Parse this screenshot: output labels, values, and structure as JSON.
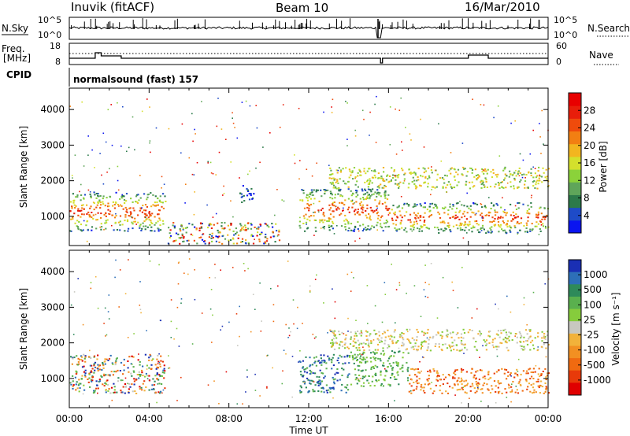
{
  "header": {
    "station": "Inuvik (fitACF)",
    "beam": "Beam 10",
    "date": "16/Mar/2010"
  },
  "noise_panel": {
    "left_label": "N.Sky",
    "right_label": "N.Search",
    "ticks_left": [
      "10^5",
      "10^0"
    ],
    "ticks_right": [
      "10^5",
      "10^0"
    ]
  },
  "freq_panel": {
    "left_label_1": "Freq.",
    "left_label_2": "[MHz]",
    "right_label": "Nave",
    "ticks_left": [
      "18",
      "8"
    ],
    "ticks_right": [
      "60",
      "0"
    ]
  },
  "cpid": {
    "label": "CPID",
    "program": "normalsound (fast) 157"
  },
  "chart_data": [
    {
      "type": "heatmap",
      "name": "power",
      "ylabel": "Slant Range [km]",
      "xlabel": "",
      "ylim": [
        180,
        4600
      ],
      "yticks": [
        "1000",
        "2000",
        "3000",
        "4000"
      ],
      "colorbar": {
        "label": "Power [dB]",
        "ticks": [
          "4",
          "8",
          "12",
          "16",
          "20",
          "24",
          "28"
        ],
        "colors": [
          "#0a14f0",
          "#1e4bc8",
          "#2c7a4a",
          "#5fa55a",
          "#8bd23a",
          "#d4e02c",
          "#f2b51f",
          "#f27f12",
          "#ef4b0c",
          "#e81e0a",
          "#e80000"
        ]
      },
      "regions": [
        {
          "t": [
            0.0,
            4.8
          ],
          "r": [
            600,
            1700
          ],
          "level": "high"
        },
        {
          "t": [
            4.9,
            10.5
          ],
          "r": [
            250,
            850
          ],
          "level": "mixed"
        },
        {
          "t": [
            11.5,
            16.0
          ],
          "r": [
            600,
            1800
          ],
          "level": "high"
        },
        {
          "t": [
            16.0,
            24.0
          ],
          "r": [
            550,
            1400
          ],
          "level": "high"
        },
        {
          "t": [
            13.0,
            24.0
          ],
          "r": [
            1800,
            2400
          ],
          "level": "mid"
        },
        {
          "t": [
            8.5,
            9.3
          ],
          "r": [
            1400,
            1900
          ],
          "level": "low"
        }
      ]
    },
    {
      "type": "heatmap",
      "name": "velocity",
      "ylabel": "Slant Range [km]",
      "xlabel": "Time UT",
      "ylim": [
        180,
        4600
      ],
      "yticks": [
        "1000",
        "2000",
        "3000",
        "4000"
      ],
      "xticks": [
        "00:00",
        "04:00",
        "08:00",
        "12:00",
        "16:00",
        "20:00",
        "00:00"
      ],
      "xlim": [
        0,
        24
      ],
      "colorbar": {
        "label": "Velocity [m s⁻¹]",
        "ticks": [
          "1000",
          "500",
          "100",
          "25",
          "-25",
          "-100",
          "-500",
          "-1000"
        ],
        "colors": [
          "#1a2fb4",
          "#2d6fb8",
          "#2e8a5a",
          "#5ab04e",
          "#86cc3c",
          "#c8c8c0",
          "#f2b23a",
          "#f29022",
          "#f06a10",
          "#e83a0a",
          "#e00000"
        ]
      },
      "regions": [
        {
          "t": [
            0.0,
            4.8
          ],
          "r": [
            600,
            1700
          ],
          "level": "mixed"
        },
        {
          "t": [
            11.5,
            14.0
          ],
          "r": [
            600,
            1700
          ],
          "level": "toward"
        },
        {
          "t": [
            14.0,
            17.0
          ],
          "r": [
            800,
            1800
          ],
          "level": "toward-slow"
        },
        {
          "t": [
            17.0,
            24.0
          ],
          "r": [
            600,
            1300
          ],
          "level": "away"
        },
        {
          "t": [
            13.0,
            24.0
          ],
          "r": [
            1800,
            2400
          ],
          "level": "near-zero"
        }
      ]
    }
  ]
}
